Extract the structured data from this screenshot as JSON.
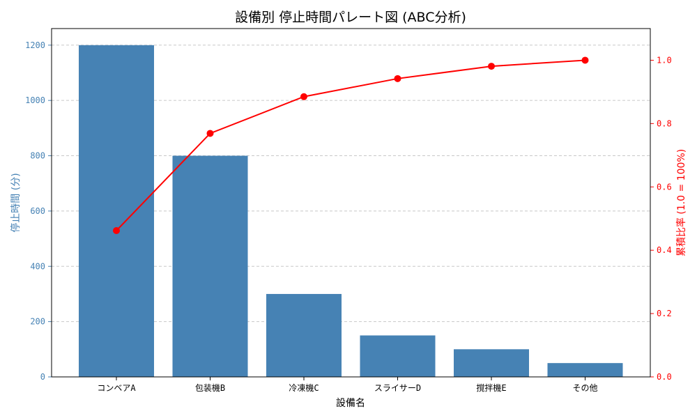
{
  "chart_data": {
    "type": "bar",
    "title": "設備別 停止時間パレート図 (ABC分析)",
    "xlabel": "設備名",
    "ylabel": "停止時間 (分)",
    "y2label": "累積比率 (1.0 = 100%)",
    "categories": [
      "コンベアA",
      "包装機B",
      "冷凍機C",
      "スライサーD",
      "撹拌機E",
      "その他"
    ],
    "series": [
      {
        "values": [
          1200,
          800,
          300,
          150,
          100,
          50
        ],
        "axis": "left",
        "kind": "bar"
      },
      {
        "values": [
          0.462,
          0.769,
          0.885,
          0.942,
          0.981,
          1.0
        ],
        "axis": "right",
        "kind": "line"
      }
    ],
    "ylim": [
      0,
      1260
    ],
    "y2lim": [
      0,
      1.1
    ],
    "yticks": [
      0,
      200,
      400,
      600,
      800,
      1000,
      1200
    ],
    "y2ticks": [
      0.0,
      0.2,
      0.4,
      0.6,
      0.8,
      1.0
    ],
    "grid": true,
    "colors": {
      "bar": "#4682b4",
      "line": "#ff0000",
      "grid": "#c8c8c8"
    }
  }
}
